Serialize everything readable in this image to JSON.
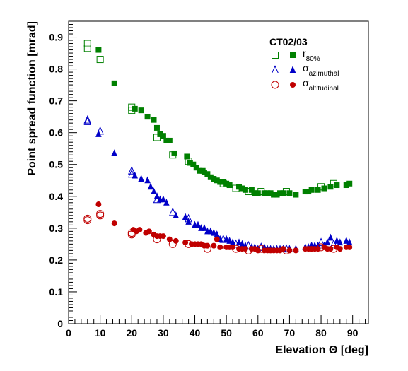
{
  "chart_data": {
    "type": "scatter",
    "title": "",
    "xlabel": "Elevation Θ [deg]",
    "ylabel": "Point spread function [mrad]",
    "xlim": [
      0,
      95
    ],
    "ylim": [
      0,
      0.95
    ],
    "xticks": [
      0,
      10,
      20,
      30,
      40,
      50,
      60,
      70,
      80,
      90
    ],
    "xtick_labels": [
      "0",
      "10",
      "20",
      "30",
      "40",
      "50",
      "60",
      "70",
      "80",
      "90"
    ],
    "yticks": [
      0,
      0.1,
      0.2,
      0.3,
      0.4,
      0.5,
      0.6,
      0.7,
      0.8,
      0.9
    ],
    "ytick_labels": [
      "0",
      "0.1",
      "0.2",
      "0.3",
      "0.4",
      "0.5",
      "0.6",
      "0.7",
      "0.8",
      "0.9"
    ],
    "grid": false,
    "legend": {
      "placement": "top-right",
      "header": "CT02/03",
      "entries": [
        {
          "base": "r",
          "sub": "80%",
          "color": "#008000",
          "marker": "square"
        },
        {
          "base": "σ",
          "sub": "azimuthal",
          "color": "#0000c8",
          "marker": "triangle"
        },
        {
          "base": "σ",
          "sub": "altitudinal",
          "color": "#c00000",
          "marker": "circle"
        }
      ]
    },
    "series": [
      {
        "quantity": "r80%",
        "marker": "square",
        "filled": false,
        "color": "#008000",
        "points": [
          [
            6,
            0.88
          ],
          [
            6,
            0.865
          ],
          [
            10,
            0.83
          ],
          [
            20,
            0.68
          ],
          [
            20,
            0.67
          ],
          [
            28,
            0.585
          ],
          [
            33,
            0.53
          ],
          [
            38,
            0.51
          ],
          [
            49,
            0.44
          ],
          [
            53,
            0.425
          ],
          [
            57,
            0.415
          ],
          [
            61,
            0.415
          ],
          [
            69,
            0.415
          ],
          [
            80,
            0.43
          ],
          [
            84,
            0.44
          ]
        ]
      },
      {
        "quantity": "r80%",
        "marker": "square",
        "filled": true,
        "color": "#008000",
        "points": [
          [
            9.5,
            0.86
          ],
          [
            14.5,
            0.755
          ],
          [
            21,
            0.675
          ],
          [
            23,
            0.67
          ],
          [
            25,
            0.65
          ],
          [
            27,
            0.64
          ],
          [
            28,
            0.615
          ],
          [
            29,
            0.595
          ],
          [
            30,
            0.59
          ],
          [
            31,
            0.575
          ],
          [
            32,
            0.575
          ],
          [
            33.5,
            0.535
          ],
          [
            37.5,
            0.525
          ],
          [
            38.5,
            0.505
          ],
          [
            39.5,
            0.5
          ],
          [
            40.5,
            0.49
          ],
          [
            41.5,
            0.48
          ],
          [
            42.5,
            0.48
          ],
          [
            43,
            0.475
          ],
          [
            44,
            0.47
          ],
          [
            45,
            0.46
          ],
          [
            46,
            0.455
          ],
          [
            47,
            0.45
          ],
          [
            48,
            0.445
          ],
          [
            49,
            0.445
          ],
          [
            50,
            0.44
          ],
          [
            51,
            0.435
          ],
          [
            54,
            0.43
          ],
          [
            55,
            0.425
          ],
          [
            56,
            0.42
          ],
          [
            58,
            0.42
          ],
          [
            59,
            0.41
          ],
          [
            60,
            0.41
          ],
          [
            62,
            0.41
          ],
          [
            63,
            0.41
          ],
          [
            64,
            0.41
          ],
          [
            65,
            0.405
          ],
          [
            66,
            0.405
          ],
          [
            67,
            0.41
          ],
          [
            68,
            0.41
          ],
          [
            70,
            0.41
          ],
          [
            72,
            0.405
          ],
          [
            75,
            0.415
          ],
          [
            76,
            0.415
          ],
          [
            77,
            0.42
          ],
          [
            79,
            0.42
          ],
          [
            81,
            0.425
          ],
          [
            83,
            0.43
          ],
          [
            85,
            0.435
          ],
          [
            88,
            0.435
          ],
          [
            89,
            0.44
          ]
        ]
      },
      {
        "quantity": "σ azimuthal",
        "marker": "triangle",
        "filled": false,
        "color": "#0000c8",
        "points": [
          [
            6,
            0.64
          ],
          [
            6,
            0.635
          ],
          [
            10,
            0.605
          ],
          [
            20,
            0.48
          ],
          [
            20,
            0.47
          ],
          [
            28,
            0.39
          ],
          [
            33,
            0.35
          ],
          [
            38,
            0.33
          ],
          [
            49,
            0.265
          ],
          [
            53,
            0.25
          ],
          [
            57,
            0.245
          ],
          [
            61,
            0.24
          ],
          [
            69,
            0.235
          ],
          [
            80,
            0.255
          ],
          [
            84,
            0.25
          ]
        ]
      },
      {
        "quantity": "σ azimuthal",
        "marker": "triangle",
        "filled": true,
        "color": "#0000c8",
        "points": [
          [
            9.5,
            0.595
          ],
          [
            14.5,
            0.535
          ],
          [
            21,
            0.465
          ],
          [
            23,
            0.455
          ],
          [
            25,
            0.45
          ],
          [
            26,
            0.43
          ],
          [
            27,
            0.415
          ],
          [
            28,
            0.4
          ],
          [
            29,
            0.39
          ],
          [
            30,
            0.39
          ],
          [
            31,
            0.38
          ],
          [
            34,
            0.34
          ],
          [
            37,
            0.335
          ],
          [
            38,
            0.32
          ],
          [
            40,
            0.31
          ],
          [
            41,
            0.31
          ],
          [
            42,
            0.3
          ],
          [
            43,
            0.3
          ],
          [
            44,
            0.29
          ],
          [
            45,
            0.29
          ],
          [
            46,
            0.285
          ],
          [
            47,
            0.28
          ],
          [
            48,
            0.265
          ],
          [
            50,
            0.265
          ],
          [
            51,
            0.26
          ],
          [
            52,
            0.255
          ],
          [
            54,
            0.255
          ],
          [
            55,
            0.25
          ],
          [
            56,
            0.245
          ],
          [
            58,
            0.24
          ],
          [
            59,
            0.24
          ],
          [
            60,
            0.235
          ],
          [
            62,
            0.24
          ],
          [
            63,
            0.235
          ],
          [
            64,
            0.235
          ],
          [
            65,
            0.235
          ],
          [
            66,
            0.235
          ],
          [
            67,
            0.235
          ],
          [
            68,
            0.235
          ],
          [
            70,
            0.235
          ],
          [
            72,
            0.235
          ],
          [
            75,
            0.24
          ],
          [
            76,
            0.24
          ],
          [
            77,
            0.245
          ],
          [
            78,
            0.245
          ],
          [
            79,
            0.245
          ],
          [
            81,
            0.245
          ],
          [
            82,
            0.255
          ],
          [
            83,
            0.27
          ],
          [
            85,
            0.26
          ],
          [
            86,
            0.255
          ],
          [
            88,
            0.26
          ],
          [
            89,
            0.255
          ]
        ]
      },
      {
        "quantity": "σ altitudinal",
        "marker": "circle",
        "filled": false,
        "color": "#c00000",
        "points": [
          [
            6,
            0.33
          ],
          [
            6,
            0.325
          ],
          [
            10,
            0.345
          ],
          [
            10,
            0.34
          ],
          [
            20,
            0.285
          ],
          [
            20,
            0.28
          ],
          [
            28,
            0.265
          ],
          [
            33,
            0.25
          ],
          [
            38,
            0.25
          ],
          [
            44,
            0.235
          ],
          [
            53,
            0.235
          ],
          [
            57,
            0.23
          ],
          [
            61,
            0.235
          ],
          [
            69,
            0.23
          ],
          [
            80,
            0.24
          ],
          [
            84,
            0.235
          ]
        ]
      },
      {
        "quantity": "σ altitudinal",
        "marker": "circle",
        "filled": true,
        "color": "#c00000",
        "points": [
          [
            9.5,
            0.375
          ],
          [
            14.5,
            0.315
          ],
          [
            20.5,
            0.295
          ],
          [
            21.5,
            0.29
          ],
          [
            22.5,
            0.295
          ],
          [
            24.5,
            0.285
          ],
          [
            25.5,
            0.29
          ],
          [
            27,
            0.28
          ],
          [
            28,
            0.275
          ],
          [
            29,
            0.275
          ],
          [
            30,
            0.275
          ],
          [
            32,
            0.265
          ],
          [
            34,
            0.26
          ],
          [
            37,
            0.255
          ],
          [
            39,
            0.25
          ],
          [
            40,
            0.25
          ],
          [
            41,
            0.25
          ],
          [
            42,
            0.25
          ],
          [
            43,
            0.245
          ],
          [
            44,
            0.245
          ],
          [
            46,
            0.245
          ],
          [
            47,
            0.265
          ],
          [
            48,
            0.24
          ],
          [
            50,
            0.24
          ],
          [
            51,
            0.24
          ],
          [
            52,
            0.24
          ],
          [
            54,
            0.235
          ],
          [
            55,
            0.235
          ],
          [
            56,
            0.235
          ],
          [
            58,
            0.235
          ],
          [
            59,
            0.235
          ],
          [
            60,
            0.23
          ],
          [
            62,
            0.23
          ],
          [
            63,
            0.23
          ],
          [
            64,
            0.23
          ],
          [
            65,
            0.23
          ],
          [
            66,
            0.23
          ],
          [
            67,
            0.23
          ],
          [
            68,
            0.235
          ],
          [
            70,
            0.23
          ],
          [
            72,
            0.23
          ],
          [
            75,
            0.235
          ],
          [
            76,
            0.235
          ],
          [
            77,
            0.235
          ],
          [
            78,
            0.235
          ],
          [
            79,
            0.235
          ],
          [
            81,
            0.24
          ],
          [
            82,
            0.235
          ],
          [
            83,
            0.235
          ],
          [
            85,
            0.24
          ],
          [
            86,
            0.235
          ],
          [
            88,
            0.24
          ],
          [
            89,
            0.24
          ]
        ]
      }
    ]
  }
}
